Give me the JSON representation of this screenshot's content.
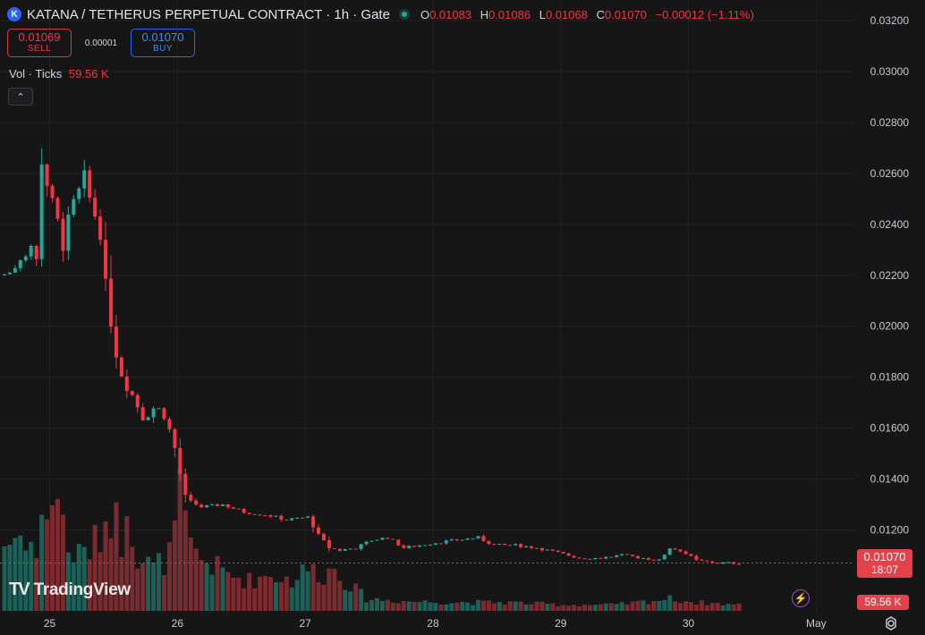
{
  "header": {
    "logo_letter": "K",
    "title": "KATANA / TETHERUS PERPETUAL CONTRACT · 1h · Gate",
    "ohlc": [
      {
        "k": "O",
        "v": "0.01083"
      },
      {
        "k": "H",
        "v": "0.01086"
      },
      {
        "k": "L",
        "v": "0.01068"
      },
      {
        "k": "C",
        "v": "0.01070"
      }
    ],
    "change": "−0.00012 (−1.11%)"
  },
  "trade": {
    "sell_price": "0.01069",
    "sell_label": "SELL",
    "spread": "0.00001",
    "buy_price": "0.01070",
    "buy_label": "BUY"
  },
  "volume_legend": {
    "label": "Vol · Ticks",
    "value": "59.56 K"
  },
  "watermark": "TradingView",
  "current_price": {
    "price": "0.01070",
    "countdown": "18:07"
  },
  "volume_badge": "59.56 K",
  "colors": {
    "up": "#26a69a",
    "down": "#f23645",
    "up_vol": "#1e5f57",
    "down_vol": "#7a2b2f",
    "background": "#161616"
  },
  "icons": {
    "collapse": "chevron-up-icon",
    "settings": "gear-icon",
    "lightning": "lightning-icon"
  },
  "chart_data": {
    "type": "candlestick",
    "price_axis": {
      "ticks": [
        "0.03200",
        "0.03000",
        "0.02800",
        "0.02600",
        "0.02400",
        "0.02200",
        "0.02000",
        "0.01800",
        "0.01600",
        "0.01400",
        "0.01200"
      ],
      "range": [
        0.0097,
        0.0326
      ]
    },
    "time_axis": {
      "labels": [
        "25",
        "26",
        "27",
        "28",
        "29",
        "30",
        "May"
      ],
      "label_hours": [
        9,
        33,
        57,
        81,
        105,
        129,
        153
      ]
    },
    "current_price": 0.0107,
    "anchors": [
      [
        0,
        0.022
      ],
      [
        2,
        0.0221
      ],
      [
        4,
        0.0228
      ],
      [
        6,
        0.0232
      ],
      [
        7,
        0.0225
      ],
      [
        8,
        0.0266
      ],
      [
        10,
        0.0247
      ],
      [
        12,
        0.0233
      ],
      [
        14,
        0.0247
      ],
      [
        16,
        0.0257
      ],
      [
        17,
        0.025
      ],
      [
        19,
        0.0238
      ],
      [
        20,
        0.0215
      ],
      [
        22,
        0.019
      ],
      [
        23,
        0.0182
      ],
      [
        25,
        0.0173
      ],
      [
        27,
        0.0165
      ],
      [
        29,
        0.0168
      ],
      [
        31,
        0.0166
      ],
      [
        33,
        0.0152
      ],
      [
        35,
        0.0132
      ],
      [
        38,
        0.0129
      ],
      [
        42,
        0.013
      ],
      [
        46,
        0.0127
      ],
      [
        50,
        0.0126
      ],
      [
        54,
        0.0124
      ],
      [
        58,
        0.0125
      ],
      [
        60,
        0.0118
      ],
      [
        62,
        0.0113
      ],
      [
        64,
        0.0112
      ],
      [
        67,
        0.0113
      ],
      [
        70,
        0.0116
      ],
      [
        73,
        0.0117
      ],
      [
        76,
        0.0113
      ],
      [
        79,
        0.0114
      ],
      [
        82,
        0.0115
      ],
      [
        86,
        0.0116
      ],
      [
        90,
        0.0117
      ],
      [
        93,
        0.0114
      ],
      [
        97,
        0.0114
      ],
      [
        101,
        0.0113
      ],
      [
        105,
        0.0111
      ],
      [
        109,
        0.0109
      ],
      [
        113,
        0.0109
      ],
      [
        117,
        0.011
      ],
      [
        121,
        0.0109
      ],
      [
        124,
        0.0108
      ],
      [
        126,
        0.0113
      ],
      [
        128,
        0.0112
      ],
      [
        131,
        0.0108
      ],
      [
        135,
        0.0107
      ],
      [
        138,
        0.0107
      ]
    ],
    "volume_profile": [
      [
        0,
        0.55
      ],
      [
        4,
        0.65
      ],
      [
        6,
        0.45
      ],
      [
        8,
        0.9
      ],
      [
        10,
        0.95
      ],
      [
        12,
        0.5
      ],
      [
        14,
        0.45
      ],
      [
        17,
        0.55
      ],
      [
        19,
        0.75
      ],
      [
        20,
        0.85
      ],
      [
        22,
        0.6
      ],
      [
        23,
        1.0
      ],
      [
        25,
        0.45
      ],
      [
        28,
        0.35
      ],
      [
        31,
        0.45
      ],
      [
        33,
        0.9
      ],
      [
        35,
        0.5
      ],
      [
        38,
        0.4
      ],
      [
        42,
        0.3
      ],
      [
        46,
        0.25
      ],
      [
        50,
        0.3
      ],
      [
        54,
        0.25
      ],
      [
        57,
        0.35
      ],
      [
        60,
        0.3
      ],
      [
        62,
        0.35
      ],
      [
        64,
        0.25
      ],
      [
        68,
        0.1
      ],
      [
        75,
        0.08
      ],
      [
        85,
        0.07
      ],
      [
        95,
        0.07
      ],
      [
        105,
        0.05
      ],
      [
        115,
        0.05
      ],
      [
        125,
        0.1
      ],
      [
        130,
        0.07
      ],
      [
        138,
        0.05
      ]
    ]
  }
}
